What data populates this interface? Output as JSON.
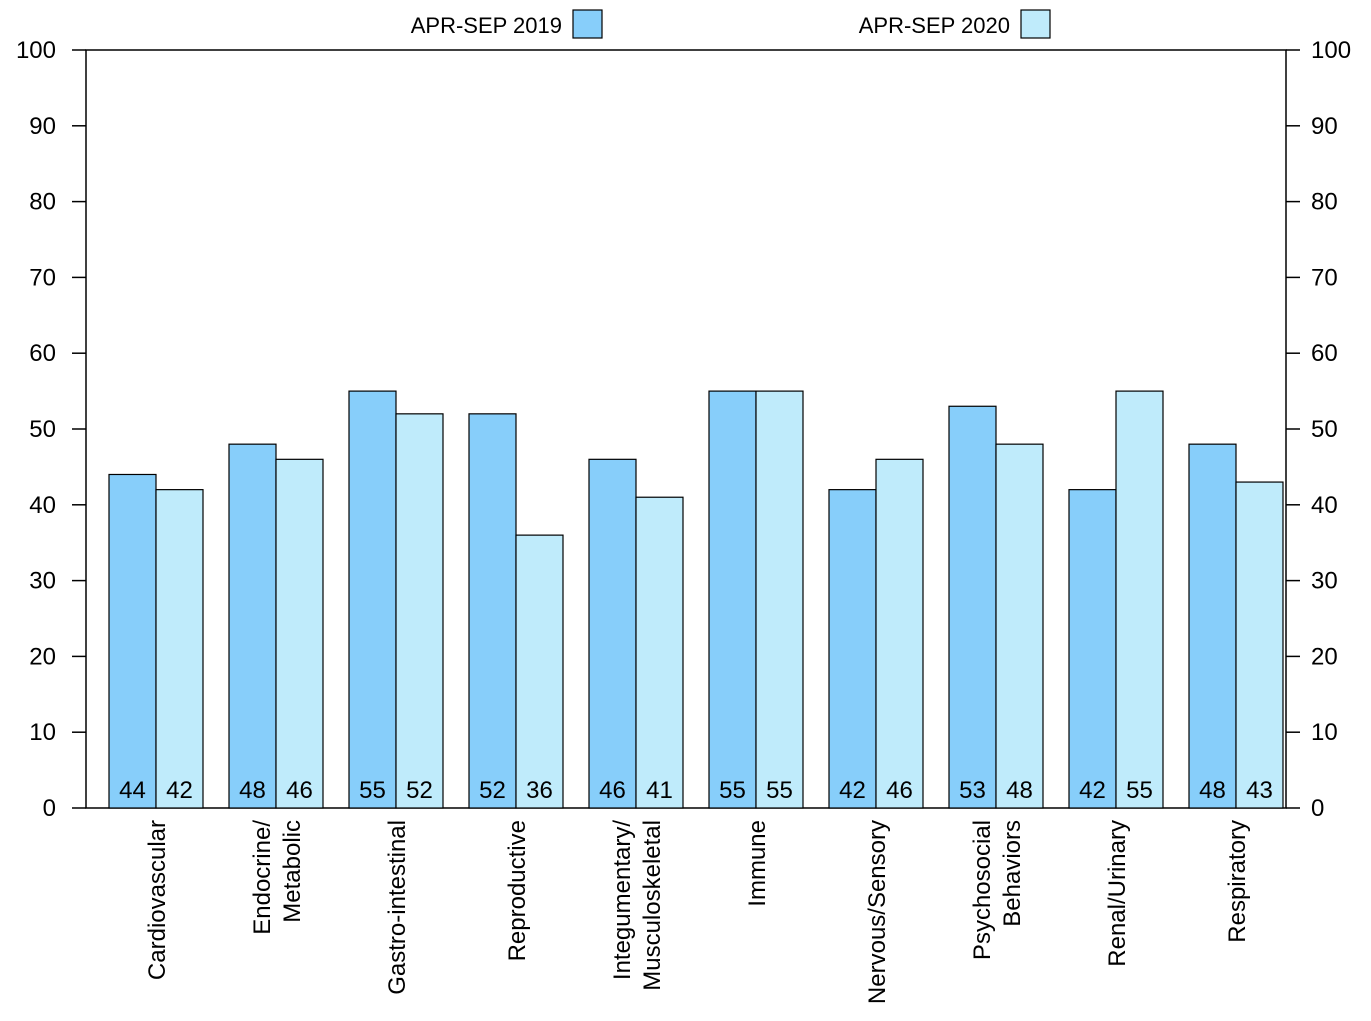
{
  "chart_data": {
    "type": "bar",
    "title": "",
    "xlabel": "",
    "ylabel": "",
    "ylim": [
      0,
      100
    ],
    "yticks": [
      0,
      10,
      20,
      30,
      40,
      50,
      60,
      70,
      80,
      90,
      100
    ],
    "secondary_y_axis": true,
    "grid": false,
    "legend_position": "top",
    "categories": [
      [
        "Cardiovascular"
      ],
      [
        "Endocrine/",
        "Metabolic"
      ],
      [
        "Gastro-intestinal"
      ],
      [
        "Reproductive"
      ],
      [
        "Integumentary/",
        "Musculoskeletal"
      ],
      [
        "Immune"
      ],
      [
        "Nervous/Sensory"
      ],
      [
        "Psychosocial",
        "Behaviors"
      ],
      [
        "Renal/Urinary"
      ],
      [
        "Respiratory"
      ]
    ],
    "series": [
      {
        "name": "APR-SEP 2019",
        "color": "#87CEFA",
        "values": [
          44,
          48,
          55,
          52,
          46,
          55,
          42,
          53,
          42,
          48
        ]
      },
      {
        "name": "APR-SEP 2020",
        "color": "#BFEBFB",
        "values": [
          42,
          46,
          52,
          36,
          41,
          55,
          46,
          48,
          55,
          43
        ]
      }
    ]
  }
}
